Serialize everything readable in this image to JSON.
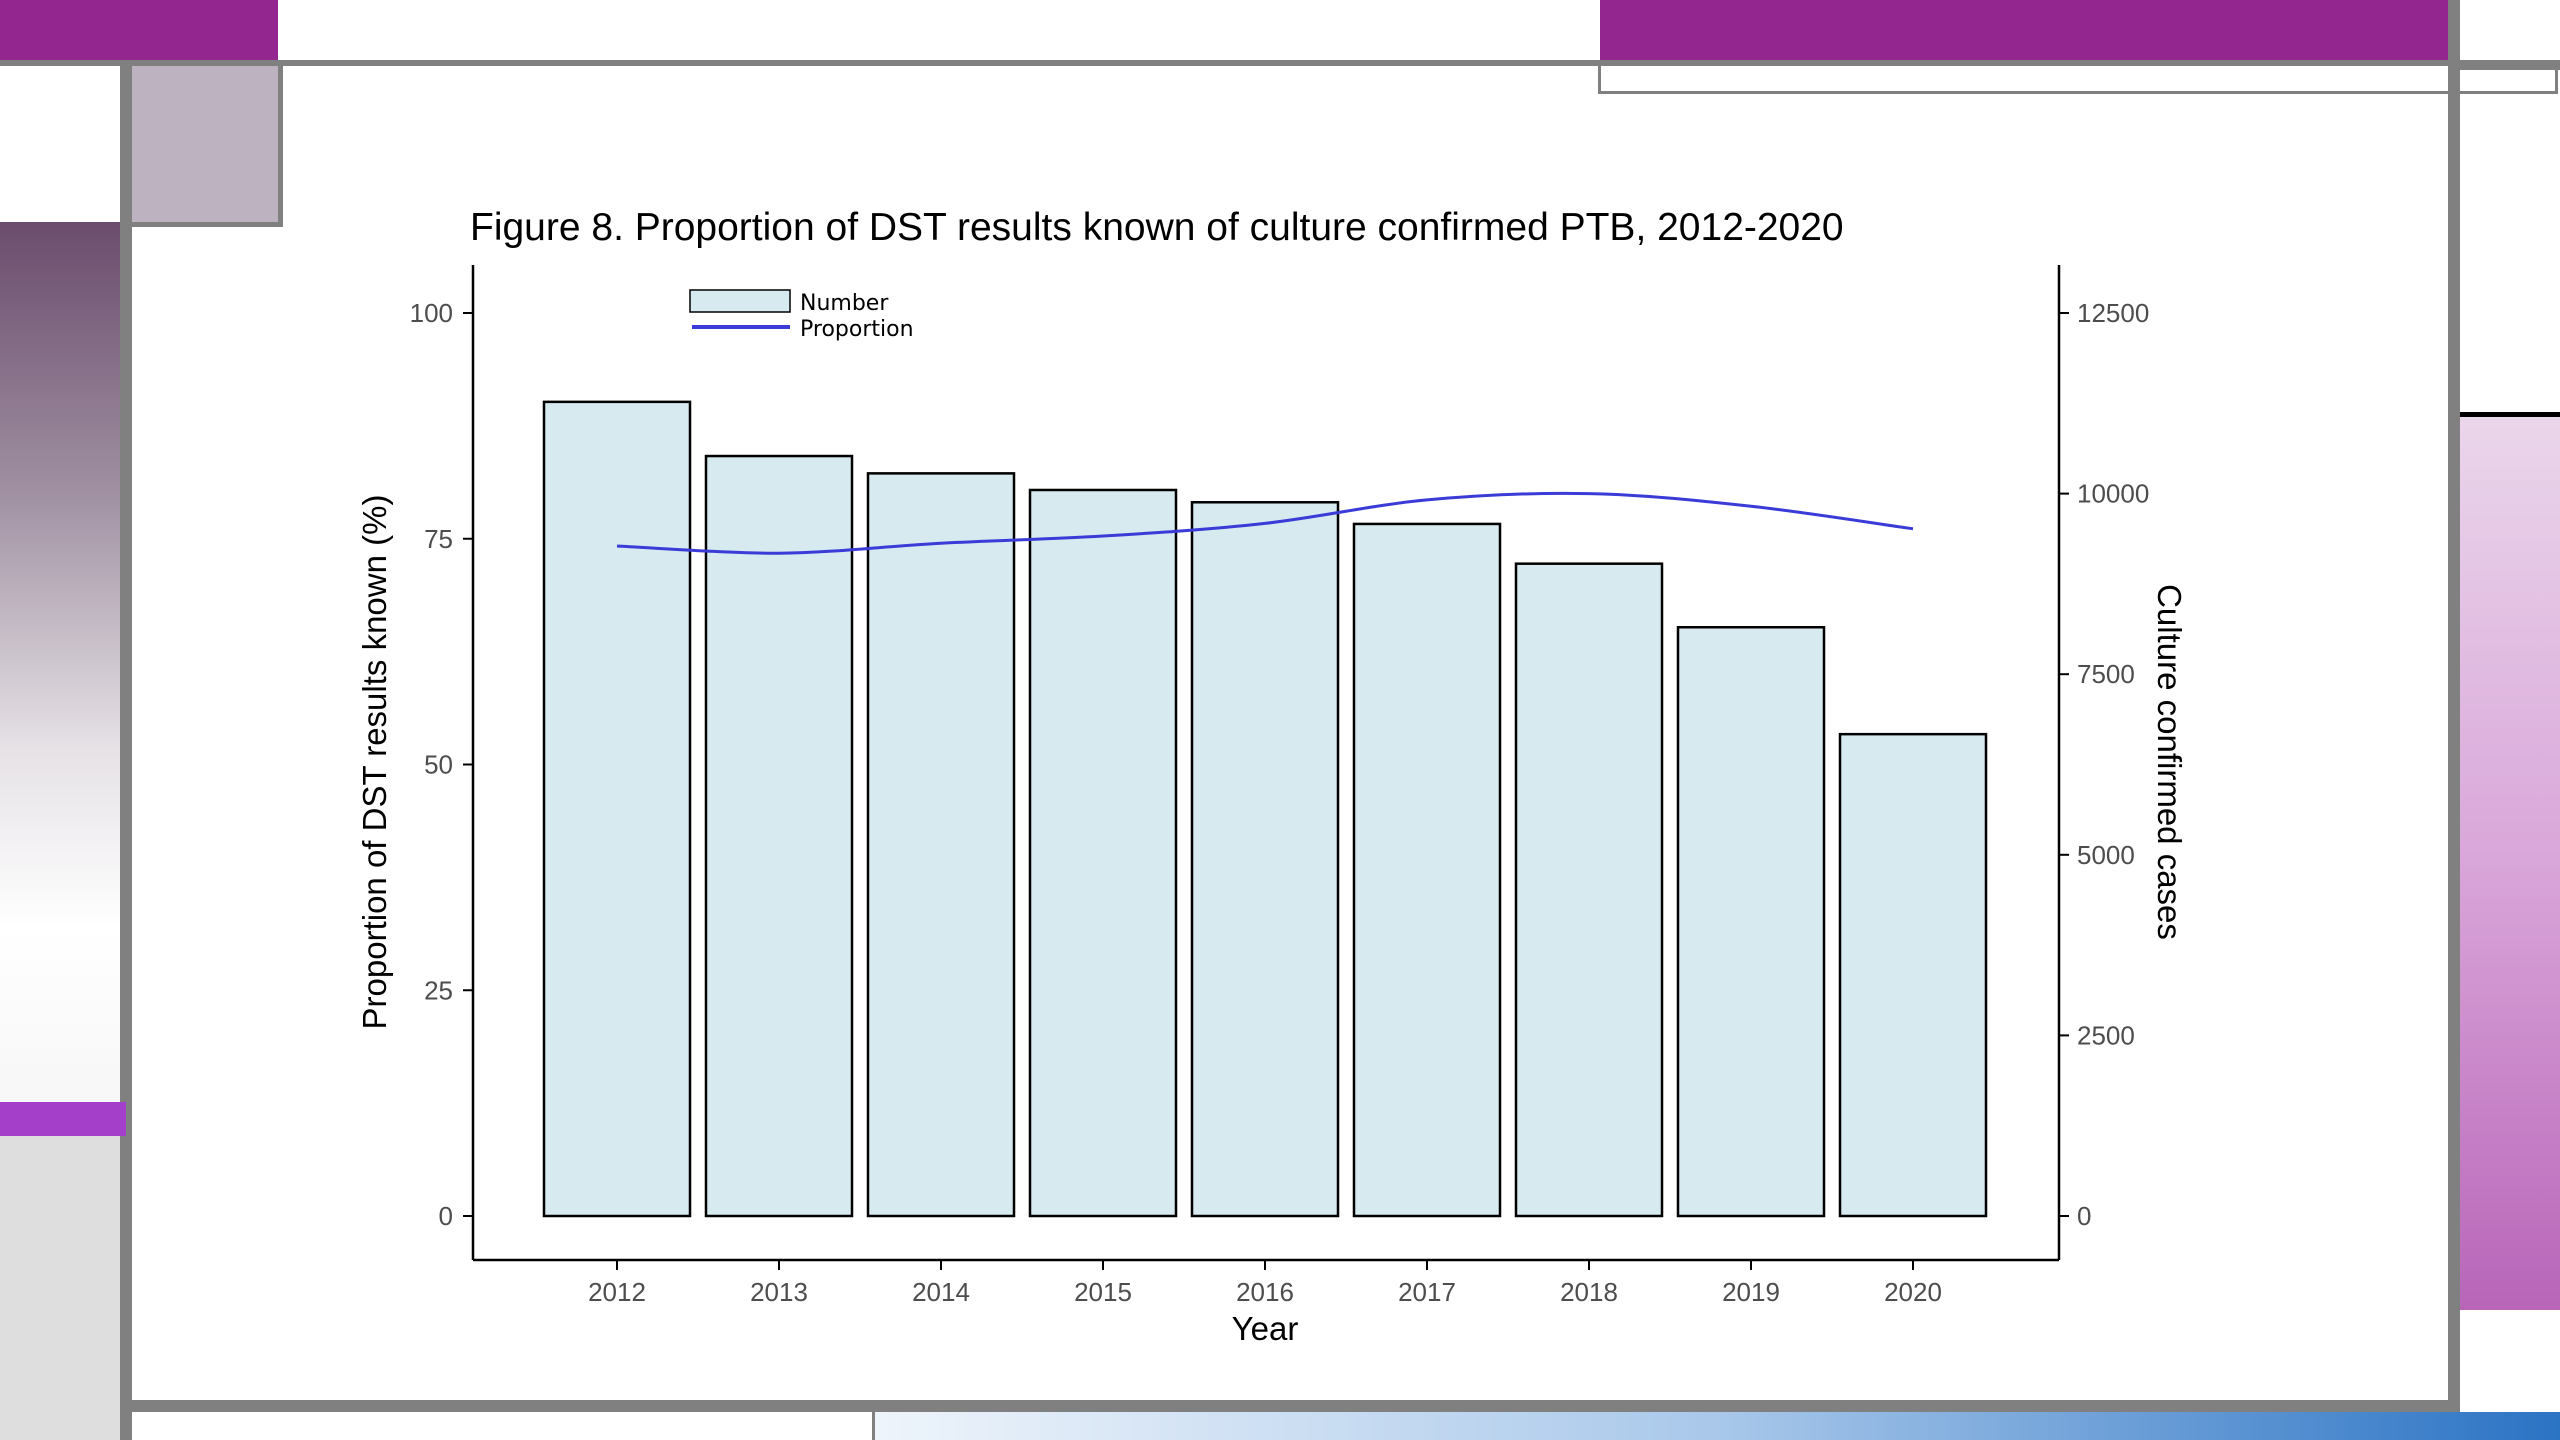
{
  "colors": {
    "accent_purple": "#93278f",
    "bar_fill": "#d6eaf0",
    "bar_stroke": "#000000",
    "line": "#3b3bd8",
    "frame_gray": "#808080",
    "mauve": "#bdb3c0"
  },
  "chart_data": {
    "type": "bar",
    "title": "Figure 8. Proportion of DST results known of culture confirmed PTB, 2012-2020",
    "xlabel": "Year",
    "ylabel": "Proportion of DST results known (%)",
    "y2label": "Culture confirmed cases",
    "categories": [
      "2012",
      "2013",
      "2014",
      "2015",
      "2016",
      "2017",
      "2018",
      "2019",
      "2020"
    ],
    "ylim": [
      0,
      100
    ],
    "y2lim": [
      0,
      12500
    ],
    "yticks": [
      0,
      25,
      50,
      75,
      100
    ],
    "y2ticks": [
      0,
      2500,
      5000,
      7500,
      10000,
      12500
    ],
    "grid": false,
    "legend": "top-left",
    "series": [
      {
        "name": "Number",
        "type": "bar",
        "axis": "right",
        "values": [
          11270,
          10520,
          10280,
          10050,
          9880,
          9580,
          9030,
          8150,
          6670
        ]
      },
      {
        "name": "Proportion",
        "type": "line",
        "axis": "left",
        "values": [
          74.2,
          73.4,
          74.5,
          75.3,
          76.7,
          79.3,
          80.0,
          78.6,
          76.1
        ]
      }
    ]
  }
}
